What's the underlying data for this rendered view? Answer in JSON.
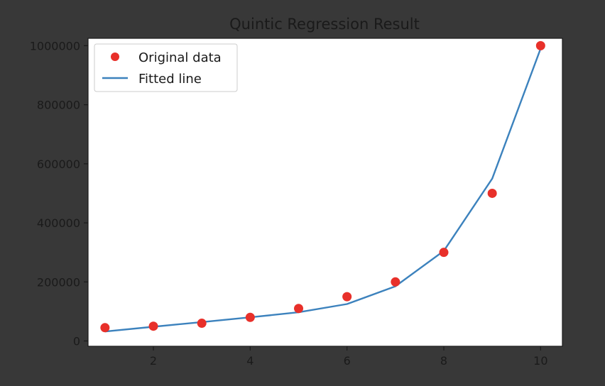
{
  "colors": {
    "background": "#383838",
    "plot_bg": "#ffffff",
    "points": "#e8302a",
    "line": "#3c82bd",
    "text": "#1a1a1a"
  },
  "chart_data": {
    "type": "scatter",
    "title": "Quintic Regression Result",
    "xlabel": "",
    "ylabel": "",
    "xlim": [
      0.65,
      10.45
    ],
    "ylim": [
      -18000,
      1025000
    ],
    "xticks": [
      2,
      4,
      6,
      8,
      10
    ],
    "xtick_labels": [
      "2",
      "4",
      "6",
      "8",
      "10"
    ],
    "yticks": [
      0,
      200000,
      400000,
      600000,
      800000,
      1000000
    ],
    "ytick_labels": [
      "0",
      "200000",
      "400000",
      "600000",
      "800000",
      "1000000"
    ],
    "grid": false,
    "legend_position": "top-left",
    "series": [
      {
        "name": "Original data",
        "kind": "scatter",
        "x": [
          1,
          2,
          3,
          4,
          5,
          6,
          7,
          8,
          9,
          10
        ],
        "y": [
          45000,
          50000,
          60000,
          80000,
          110000,
          150000,
          200000,
          300000,
          500000,
          1000000
        ]
      },
      {
        "name": "Fitted line",
        "kind": "line",
        "x": [
          1,
          2,
          3,
          4,
          5,
          6,
          7,
          8,
          9,
          10
        ],
        "y": [
          32000,
          48000,
          64000,
          80000,
          97000,
          125000,
          185000,
          305000,
          550000,
          990000
        ]
      }
    ]
  }
}
